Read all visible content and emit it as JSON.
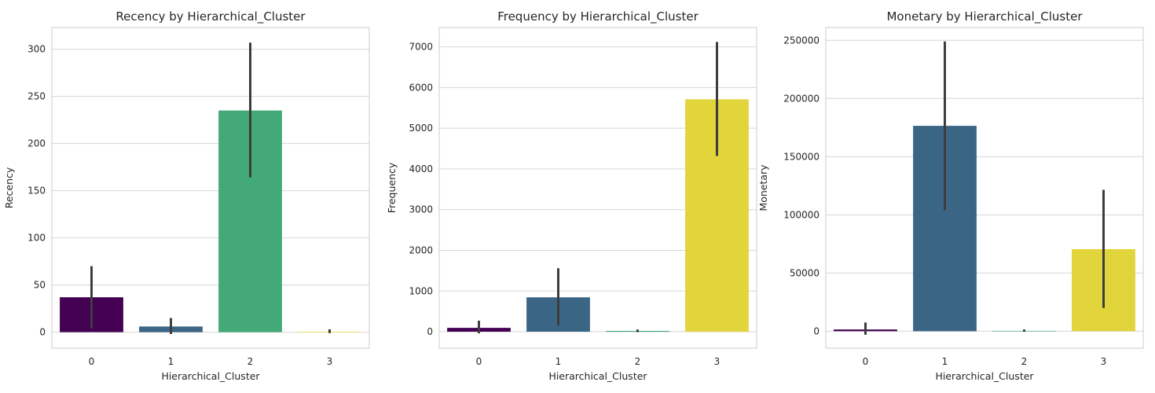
{
  "chart_data": [
    {
      "type": "bar",
      "title": "Recency by Hierarchical_Cluster",
      "xlabel": "Hierarchical_Cluster",
      "ylabel": "Recency",
      "categories": [
        "0",
        "1",
        "2",
        "3"
      ],
      "values": [
        37,
        6,
        235,
        0.5
      ],
      "error_low": [
        4,
        -2,
        164,
        -1
      ],
      "error_high": [
        70,
        15,
        307,
        3
      ],
      "ylim": [
        -17,
        323
      ],
      "yticks": [
        0,
        50,
        100,
        150,
        200,
        250,
        300
      ],
      "colors": [
        "#440154",
        "#3b6585",
        "#42a977",
        "#fde725"
      ],
      "grid": true
    },
    {
      "type": "bar",
      "title": "Frequency by Hierarchical_Cluster",
      "xlabel": "Hierarchical_Cluster",
      "ylabel": "Frequency",
      "categories": [
        "0",
        "1",
        "2",
        "3"
      ],
      "values": [
        95,
        845,
        20,
        5710
      ],
      "error_low": [
        -40,
        150,
        -10,
        4320
      ],
      "error_high": [
        270,
        1560,
        55,
        7120
      ],
      "ylim": [
        -405,
        7475
      ],
      "yticks": [
        0,
        1000,
        2000,
        3000,
        4000,
        5000,
        6000,
        7000
      ],
      "colors": [
        "#440154",
        "#3b6585",
        "#42a977",
        "#e2d43b"
      ],
      "grid": true
    },
    {
      "type": "bar",
      "title": "Monetary by Hierarchical_Cluster",
      "xlabel": "Hierarchical_Cluster",
      "ylabel": "Monetary",
      "categories": [
        "0",
        "1",
        "2",
        "3"
      ],
      "values": [
        1500,
        176500,
        300,
        70500
      ],
      "error_low": [
        -3000,
        104000,
        -500,
        20000
      ],
      "error_high": [
        7500,
        249000,
        1500,
        121500
      ],
      "ylim": [
        -14600,
        261000
      ],
      "yticks": [
        0,
        50000,
        100000,
        150000,
        200000,
        250000
      ],
      "colors": [
        "#440154",
        "#3b6585",
        "#42a977",
        "#e2d43b"
      ],
      "grid": true
    }
  ]
}
